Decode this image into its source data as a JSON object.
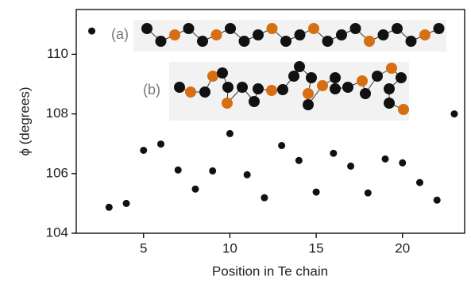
{
  "chart_data": {
    "type": "scatter",
    "x_label": "Position in Te chain",
    "y_label": "ϕ  (degrees)",
    "annotations": [
      "(a)",
      "(b)"
    ],
    "color": "#111111",
    "x": [
      2,
      3,
      4,
      5,
      6,
      7,
      8,
      9,
      10,
      11,
      12,
      13,
      14,
      15,
      16,
      17,
      18,
      19,
      20,
      21,
      22,
      23
    ],
    "values": [
      110.78,
      104.87,
      105.0,
      106.78,
      106.99,
      106.12,
      105.48,
      106.09,
      107.34,
      105.96,
      105.19,
      106.94,
      106.44,
      105.38,
      106.68,
      106.25,
      105.35,
      106.49,
      106.36,
      105.7,
      105.11,
      108.0
    ],
    "xlim": [
      1.1,
      23.6
    ],
    "xticks": [
      5,
      10,
      15,
      20
    ],
    "ylim": [
      104,
      111.5
    ],
    "yticks": [
      104,
      106,
      108,
      110
    ]
  }
}
